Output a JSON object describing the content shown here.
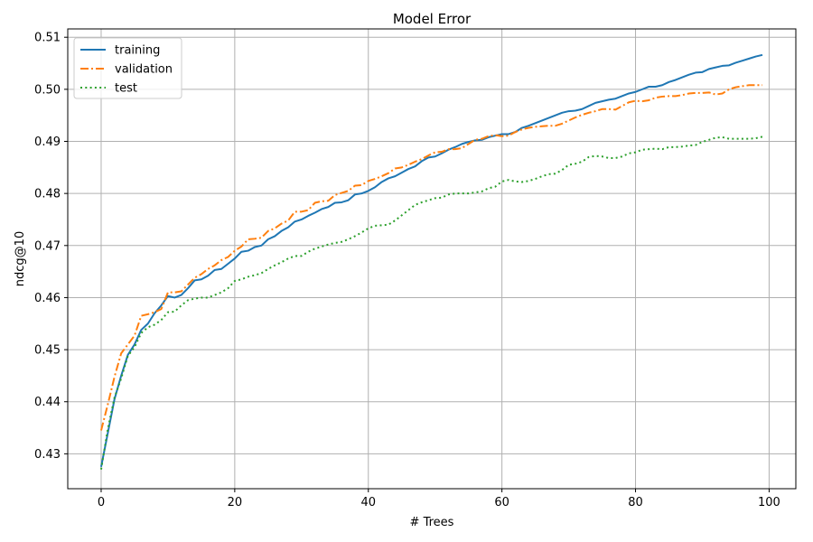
{
  "chart_data": {
    "type": "line",
    "title": "Model Error",
    "xlabel": "# Trees",
    "ylabel": "ndcg@10",
    "xlim": [
      -5,
      104
    ],
    "ylim": [
      0.4233,
      0.5116
    ],
    "xticks": [
      0,
      20,
      40,
      60,
      80,
      100
    ],
    "yticks": [
      0.43,
      0.44,
      0.45,
      0.46,
      0.47,
      0.48,
      0.49,
      0.5,
      0.51
    ],
    "grid": true,
    "legend_position": "top-left",
    "x": [
      0,
      1,
      2,
      3,
      4,
      5,
      6,
      7,
      8,
      9,
      10,
      11,
      12,
      13,
      14,
      15,
      16,
      17,
      18,
      19,
      20,
      21,
      22,
      23,
      24,
      25,
      26,
      27,
      28,
      29,
      30,
      31,
      32,
      33,
      34,
      35,
      36,
      37,
      38,
      39,
      40,
      41,
      42,
      43,
      44,
      45,
      46,
      47,
      48,
      49,
      50,
      51,
      52,
      53,
      54,
      55,
      56,
      57,
      58,
      59,
      60,
      61,
      62,
      63,
      64,
      65,
      66,
      67,
      68,
      69,
      70,
      71,
      72,
      73,
      74,
      75,
      76,
      77,
      78,
      79,
      80,
      81,
      82,
      83,
      84,
      85,
      86,
      87,
      88,
      89,
      90,
      91,
      92,
      93,
      94,
      95,
      96,
      97,
      98,
      99
    ],
    "series": [
      {
        "name": "training",
        "color": "#1f77b4",
        "dash": "solid",
        "values": [
          0.4275,
          0.434,
          0.4405,
          0.445,
          0.449,
          0.451,
          0.4538,
          0.455,
          0.457,
          0.4585,
          0.4603,
          0.46,
          0.4605,
          0.4618,
          0.4633,
          0.4635,
          0.4642,
          0.4653,
          0.4655,
          0.4665,
          0.4675,
          0.4688,
          0.469,
          0.4697,
          0.47,
          0.4712,
          0.4718,
          0.4728,
          0.4735,
          0.4746,
          0.475,
          0.4757,
          0.4763,
          0.477,
          0.4774,
          0.4782,
          0.4783,
          0.4787,
          0.4798,
          0.48,
          0.4805,
          0.4812,
          0.4822,
          0.4829,
          0.4833,
          0.484,
          0.4847,
          0.4852,
          0.4862,
          0.4869,
          0.4871,
          0.4877,
          0.4884,
          0.4889,
          0.4895,
          0.4899,
          0.4902,
          0.4903,
          0.4908,
          0.4911,
          0.4914,
          0.4914,
          0.4918,
          0.4926,
          0.493,
          0.4935,
          0.494,
          0.4945,
          0.495,
          0.4955,
          0.4958,
          0.4959,
          0.4962,
          0.4968,
          0.4974,
          0.4977,
          0.498,
          0.4982,
          0.4987,
          0.4992,
          0.4995,
          0.5,
          0.5005,
          0.5005,
          0.5008,
          0.5014,
          0.5018,
          0.5023,
          0.5028,
          0.5032,
          0.5033,
          0.5039,
          0.5042,
          0.5045,
          0.5046,
          0.5051,
          0.5055,
          0.5059,
          0.5063,
          0.5066
        ]
      },
      {
        "name": "validation",
        "color": "#ff7f0e",
        "dash": "dashdot",
        "values": [
          0.4345,
          0.4395,
          0.4448,
          0.4493,
          0.451,
          0.4527,
          0.4565,
          0.4568,
          0.4572,
          0.4578,
          0.461,
          0.461,
          0.4612,
          0.4625,
          0.4638,
          0.4645,
          0.4655,
          0.4662,
          0.4672,
          0.4678,
          0.469,
          0.4698,
          0.4712,
          0.4713,
          0.4715,
          0.4728,
          0.4733,
          0.4742,
          0.4748,
          0.4765,
          0.4765,
          0.4768,
          0.4782,
          0.4785,
          0.4786,
          0.4797,
          0.4801,
          0.4805,
          0.4815,
          0.4816,
          0.4824,
          0.4828,
          0.4833,
          0.4839,
          0.4848,
          0.485,
          0.4855,
          0.4861,
          0.4866,
          0.4873,
          0.4879,
          0.488,
          0.4885,
          0.4885,
          0.4887,
          0.4895,
          0.4903,
          0.4905,
          0.491,
          0.4912,
          0.491,
          0.4911,
          0.4918,
          0.4923,
          0.4926,
          0.4928,
          0.4929,
          0.493,
          0.493,
          0.4934,
          0.494,
          0.4946,
          0.4951,
          0.4955,
          0.4958,
          0.4962,
          0.4962,
          0.4961,
          0.4968,
          0.4975,
          0.4978,
          0.4977,
          0.4979,
          0.4984,
          0.4986,
          0.4987,
          0.4987,
          0.4989,
          0.4992,
          0.4993,
          0.4993,
          0.4994,
          0.499,
          0.4992,
          0.5,
          0.5004,
          0.5006,
          0.5008,
          0.5008,
          0.5008
        ]
      },
      {
        "name": "test",
        "color": "#2ca02c",
        "dash": "dotted",
        "values": [
          0.427,
          0.4348,
          0.4408,
          0.4445,
          0.4488,
          0.4505,
          0.4532,
          0.4543,
          0.4548,
          0.4557,
          0.4572,
          0.4573,
          0.4585,
          0.4595,
          0.4598,
          0.46,
          0.46,
          0.4605,
          0.461,
          0.4618,
          0.4632,
          0.4635,
          0.464,
          0.4643,
          0.4647,
          0.4655,
          0.4662,
          0.4668,
          0.4675,
          0.468,
          0.468,
          0.4688,
          0.4694,
          0.4698,
          0.4702,
          0.4705,
          0.4707,
          0.4712,
          0.4718,
          0.4725,
          0.4733,
          0.4738,
          0.4739,
          0.474,
          0.4748,
          0.4758,
          0.4768,
          0.4778,
          0.4783,
          0.4787,
          0.4791,
          0.4792,
          0.4798,
          0.48,
          0.48,
          0.48,
          0.4802,
          0.4804,
          0.481,
          0.4813,
          0.4823,
          0.4826,
          0.4823,
          0.4822,
          0.4824,
          0.4828,
          0.4833,
          0.4837,
          0.4838,
          0.4845,
          0.4855,
          0.4857,
          0.4861,
          0.487,
          0.4872,
          0.4871,
          0.4868,
          0.4868,
          0.4871,
          0.4877,
          0.4879,
          0.4884,
          0.4885,
          0.4886,
          0.4885,
          0.4889,
          0.4889,
          0.489,
          0.4892,
          0.4893,
          0.4899,
          0.4903,
          0.4907,
          0.4908,
          0.4905,
          0.4905,
          0.4905,
          0.4905,
          0.4906,
          0.4909
        ]
      }
    ]
  }
}
